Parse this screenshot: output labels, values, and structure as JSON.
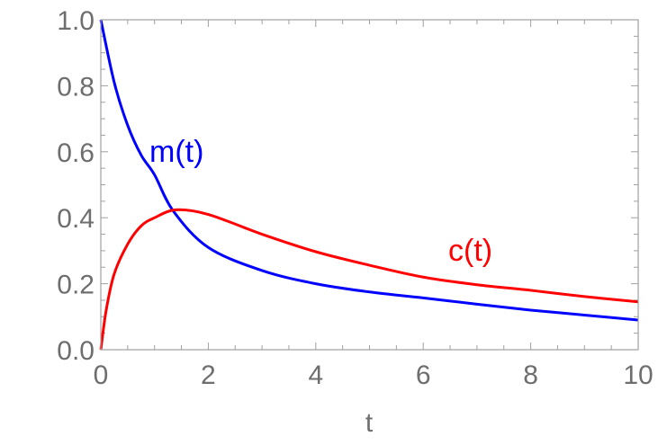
{
  "chart_data": {
    "type": "line",
    "title": "",
    "xlabel": "t",
    "ylabel": "",
    "xlim": [
      0,
      10
    ],
    "ylim": [
      0,
      1
    ],
    "x_ticks": [
      "0",
      "2",
      "4",
      "6",
      "8",
      "10"
    ],
    "y_ticks": [
      "0.0",
      "0.2",
      "0.4",
      "0.6",
      "0.8",
      "1.0"
    ],
    "grid": false,
    "series": [
      {
        "name": "m(t)",
        "color": "#0000ff",
        "x": [
          0,
          0.25,
          0.5,
          0.75,
          1,
          1.35,
          2,
          3,
          4,
          5,
          6,
          7,
          8,
          9,
          10
        ],
        "y": [
          1.0,
          0.81,
          0.68,
          0.59,
          0.53,
          0.42,
          0.31,
          0.24,
          0.2,
          0.175,
          0.157,
          0.138,
          0.12,
          0.105,
          0.09
        ]
      },
      {
        "name": "c(t)",
        "color": "#ff0000",
        "x": [
          0,
          0.1,
          0.25,
          0.5,
          0.75,
          1,
          1.4,
          2,
          3,
          4,
          5,
          6,
          7,
          8,
          9,
          10
        ],
        "y": [
          0,
          0.12,
          0.23,
          0.32,
          0.375,
          0.4,
          0.424,
          0.41,
          0.35,
          0.297,
          0.256,
          0.22,
          0.197,
          0.18,
          0.161,
          0.145
        ]
      }
    ]
  }
}
